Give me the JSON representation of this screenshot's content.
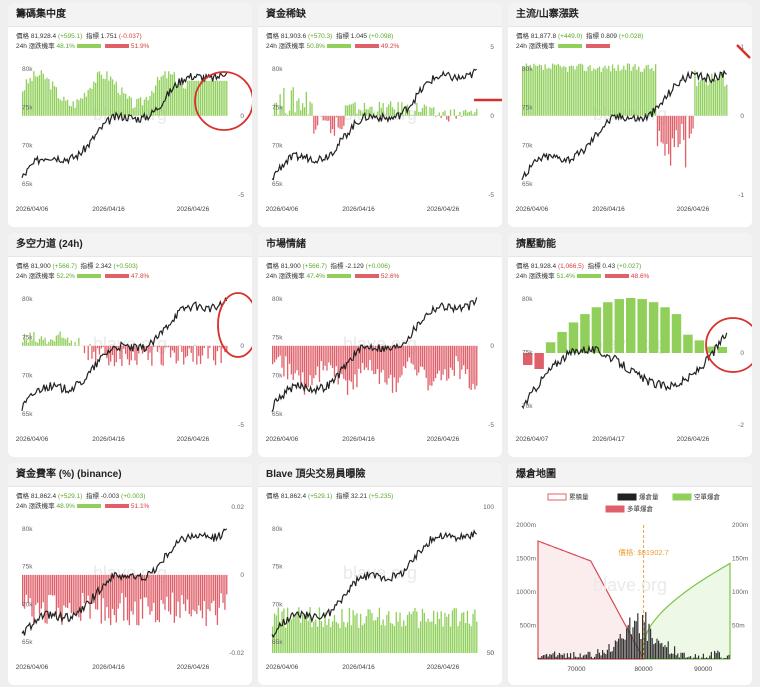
{
  "panels": [
    {
      "id": "p1",
      "title": "籌碼集中度",
      "price_label": "價格",
      "price": "81,928.4",
      "price_chg": "(+595.1)",
      "ind_label": "指標",
      "ind": "1.751",
      "ind_chg": "(-0.037)",
      "prob_label": "24h 漲跌機率",
      "up": "48.1%",
      "down": "51.9%",
      "y_left": [
        "80k",
        "75k",
        "70k",
        "65k"
      ],
      "y_right": [
        "",
        "0",
        "-5"
      ],
      "x": [
        "2026/04/06",
        "2026/04/16",
        "2026/04/26"
      ]
    },
    {
      "id": "p2",
      "title": "資金稀缺",
      "price_label": "價格",
      "price": "81,903.6",
      "price_chg": "(+570.3)",
      "ind_label": "指標",
      "ind": "1.045",
      "ind_chg": "(+0.098)",
      "prob_label": "24h 漲跌機率",
      "up": "50.8%",
      "down": "49.2%",
      "y_left": [
        "80k",
        "75k",
        "70k",
        "65k"
      ],
      "y_right": [
        "5",
        "0",
        "-5"
      ],
      "x": [
        "2026/04/06",
        "2026/04/16",
        "2026/04/26"
      ]
    },
    {
      "id": "p3",
      "title": "主流/山寨漲跌",
      "price_label": "價格",
      "price": "81,877.8",
      "price_chg": "(+449.0)",
      "ind_label": "指標",
      "ind": "0.809",
      "ind_chg": "(+0.028)",
      "prob_label": "24h 漲跌機率",
      "up": "",
      "down": "",
      "y_left": [
        "80k",
        "75k",
        "70k",
        "65k"
      ],
      "y_right": [
        "1",
        "0",
        "-1"
      ],
      "x": [
        "2026/04/06",
        "2026/04/16",
        "2026/04/26"
      ]
    },
    {
      "id": "p4",
      "title": "多空力道 (24h)",
      "price_label": "價格",
      "price": "81,900",
      "price_chg": "(+566.7)",
      "ind_label": "指標",
      "ind": "2.342",
      "ind_chg": "(+0.503)",
      "prob_label": "24h 漲跌機率",
      "up": "52.2%",
      "down": "47.8%",
      "y_left": [
        "80k",
        "75k",
        "70k",
        "65k"
      ],
      "y_right": [
        "",
        "0",
        "-5"
      ],
      "x": [
        "2026/04/06",
        "2026/04/16",
        "2026/04/26"
      ]
    },
    {
      "id": "p5",
      "title": "市場情緒",
      "price_label": "價格",
      "price": "81,900",
      "price_chg": "(+566.7)",
      "ind_label": "指標",
      "ind": "-2.129",
      "ind_chg": "(+0.006)",
      "prob_label": "24h 漲跌機率",
      "up": "47.4%",
      "down": "52.6%",
      "y_left": [
        "80k",
        "75k",
        "70k",
        "65k"
      ],
      "y_right": [
        "",
        "0",
        "-5"
      ],
      "x": [
        "2026/04/06",
        "2026/04/16",
        "2026/04/26"
      ]
    },
    {
      "id": "p6",
      "title": "擠壓動能",
      "price_label": "價格",
      "price": "81,928.4",
      "price_chg": "(1,066.5)",
      "ind_label": "指標",
      "ind": "0.43",
      "ind_chg": "(+0.027)",
      "prob_label": "24h 漲跌機率",
      "up": "51.4%",
      "down": "48.6%",
      "y_left": [
        "80k",
        "75k",
        "70k"
      ],
      "y_right": [
        "",
        "0",
        "-2"
      ],
      "x": [
        "2026/04/07",
        "2026/04/17",
        "2026/04/26"
      ]
    },
    {
      "id": "p7",
      "title": "資金費率 (%) (binance)",
      "price_label": "價格",
      "price": "81,862.4",
      "price_chg": "(+529.1)",
      "ind_label": "指標",
      "ind": "-0.003",
      "ind_chg": "(+0.003)",
      "prob_label": "24h 漲跌機率",
      "up": "48.9%",
      "down": "51.1%",
      "y_left": [
        "80k",
        "75k",
        "70k",
        "65k"
      ],
      "y_right": [
        "0.02",
        "0",
        "-0.02"
      ],
      "x": [
        "2026/04/06",
        "2026/04/16",
        "2026/04/26"
      ]
    },
    {
      "id": "p8",
      "title": "Blave 頂尖交易員曝險",
      "price_label": "價格",
      "price": "81,862.4",
      "price_chg": "(+529.1)",
      "ind_label": "指標",
      "ind": "32.21",
      "ind_chg": "(+5.235)",
      "prob_label": "",
      "up": "",
      "down": "",
      "y_left": [
        "80k",
        "75k",
        "70k",
        "65k"
      ],
      "y_right": [
        "100",
        "50",
        "0"
      ],
      "x": [
        "2026/04/06",
        "2026/04/16",
        "2026/04/26"
      ]
    }
  ],
  "liq": {
    "title": "爆倉地圖",
    "legend": [
      "累積量",
      "爆倉量",
      "空單爆倉",
      "多單爆倉"
    ],
    "price_tag": "價格: $81902.7",
    "y_left": [
      "2000m",
      "1500m",
      "1000m",
      "500m"
    ],
    "y_right": [
      "200m",
      "150m",
      "100m",
      "50m"
    ],
    "x": [
      "70000",
      "80000",
      "90000"
    ]
  },
  "watermark": "blave.org",
  "colors": {
    "green": "#8fcf5a",
    "red": "#e0606a",
    "line": "#222222",
    "annot": "#d8312b"
  }
}
